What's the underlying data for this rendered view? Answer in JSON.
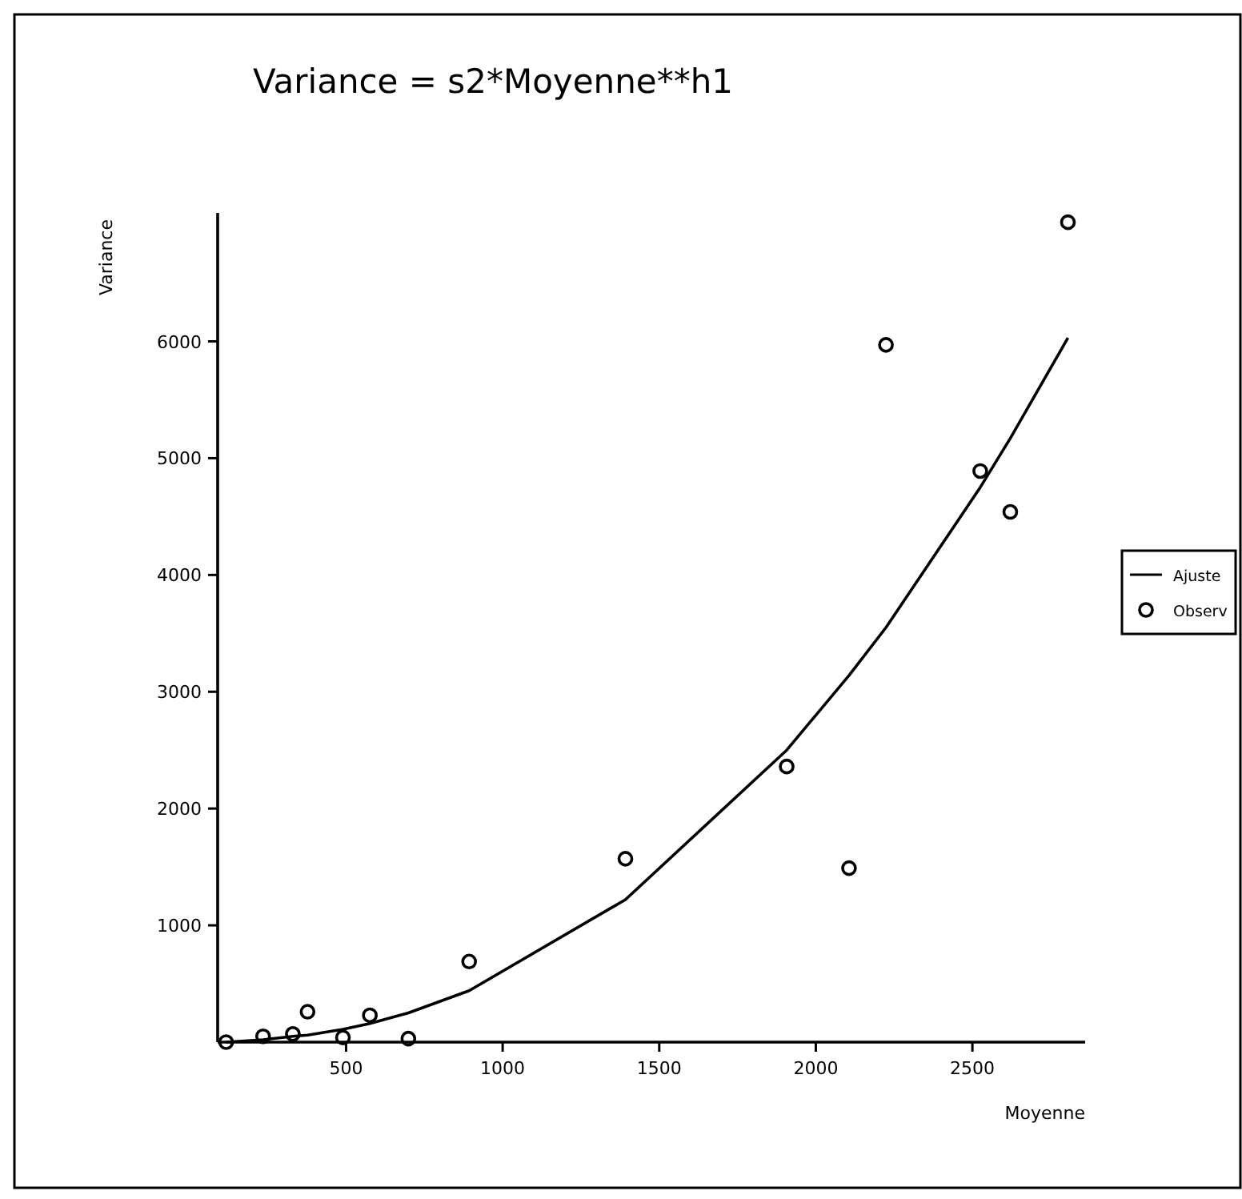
{
  "chart_data": {
    "type": "scatter",
    "title": "Variance = s2*Moyenne**h1",
    "xlabel": "Moyenne",
    "ylabel": "Variance",
    "xlim": [
      90,
      2860
    ],
    "ylim": [
      0,
      7100
    ],
    "xticks": [
      500,
      1000,
      1500,
      2000,
      2500
    ],
    "yticks": [
      1000,
      2000,
      3000,
      4000,
      5000,
      6000
    ],
    "grid": false,
    "legend": "right",
    "series": [
      {
        "name": "Ajuste",
        "type": "line",
        "color": "#000000",
        "line_style": "solid",
        "x": [
          117,
          235,
          330,
          377,
          490,
          576,
          699,
          893,
          1392,
          1907,
          2106,
          2224,
          2525,
          2621,
          2805
        ],
        "values": [
          0,
          20,
          50,
          60,
          110,
          160,
          250,
          440,
          1220,
          2500,
          3140,
          3550,
          4750,
          5170,
          6030
        ]
      },
      {
        "name": "Observ",
        "color": "#000000",
        "marker": "circle",
        "x": [
          117,
          235,
          330,
          377,
          490,
          576,
          699,
          893,
          1392,
          1907,
          2106,
          2224,
          2525,
          2621,
          2805
        ],
        "values": [
          0,
          50,
          70,
          260,
          40,
          230,
          30,
          690,
          1570,
          2360,
          1490,
          5970,
          4890,
          4540,
          7020
        ]
      }
    ]
  }
}
